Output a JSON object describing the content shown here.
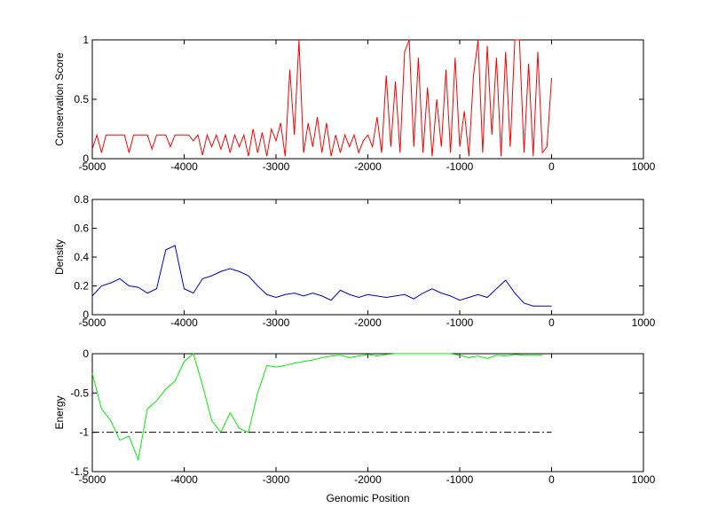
{
  "chart_data": [
    {
      "type": "line",
      "ylabel": "Conservation Score",
      "xlim": [
        -5000,
        1000
      ],
      "xticks": [
        -5000,
        -4000,
        -3000,
        -2000,
        -1000,
        0,
        1000
      ],
      "ylim": [
        0,
        1
      ],
      "yticks": [
        0,
        0.5,
        1
      ],
      "series": [
        {
          "color": "#ff0000",
          "x": [
            -5000,
            -4950,
            -4900,
            -4850,
            -4800,
            -4750,
            -4700,
            -4650,
            -4600,
            -4550,
            -4500,
            -4450,
            -4400,
            -4350,
            -4300,
            -4250,
            -4200,
            -4150,
            -4100,
            -4050,
            -4000,
            -3950,
            -3900,
            -3850,
            -3800,
            -3750,
            -3700,
            -3650,
            -3600,
            -3550,
            -3500,
            -3450,
            -3400,
            -3350,
            -3300,
            -3250,
            -3200,
            -3150,
            -3100,
            -3050,
            -3000,
            -2950,
            -2900,
            -2850,
            -2800,
            -2750,
            -2700,
            -2650,
            -2600,
            -2550,
            -2500,
            -2450,
            -2400,
            -2350,
            -2300,
            -2250,
            -2200,
            -2150,
            -2100,
            -2050,
            -2000,
            -1950,
            -1900,
            -1850,
            -1800,
            -1750,
            -1700,
            -1650,
            -1600,
            -1550,
            -1500,
            -1450,
            -1400,
            -1350,
            -1300,
            -1250,
            -1200,
            -1150,
            -1100,
            -1050,
            -1000,
            -950,
            -900,
            -850,
            -800,
            -750,
            -700,
            -650,
            -600,
            -550,
            -500,
            -450,
            -400,
            -350,
            -300,
            -250,
            -200,
            -150,
            -100,
            -50,
            0
          ],
          "values": [
            0.08,
            0.2,
            0.05,
            0.2,
            0.2,
            0.2,
            0.2,
            0.2,
            0.05,
            0.2,
            0.2,
            0.2,
            0.2,
            0.08,
            0.2,
            0.2,
            0.2,
            0.1,
            0.2,
            0.2,
            0.2,
            0.2,
            0.15,
            0.2,
            0.03,
            0.2,
            0.1,
            0.2,
            0.08,
            0.2,
            0.05,
            0.2,
            0.1,
            0.2,
            0.02,
            0.25,
            0.05,
            0.22,
            0.02,
            0.25,
            0.15,
            0.3,
            0.02,
            0.75,
            0.2,
            1,
            0.05,
            0.3,
            0.1,
            0.35,
            0.05,
            0.3,
            0.02,
            0.2,
            0.05,
            0.2,
            0.1,
            0.2,
            0.05,
            0.15,
            0.2,
            0.1,
            0.35,
            0.05,
            0.7,
            0.1,
            0.65,
            0.05,
            0.9,
            1,
            0.1,
            0.85,
            0.05,
            0.6,
            0.02,
            0.5,
            0.1,
            0.75,
            0.05,
            0.85,
            0.1,
            0.4,
            0.02,
            0.7,
            1,
            0.05,
            0.95,
            0.2,
            0.85,
            0.02,
            0.9,
            0.1,
            1,
            1,
            0.05,
            0.8,
            0.02,
            0.9,
            0.05,
            0.1,
            0.68
          ]
        }
      ]
    },
    {
      "type": "line",
      "ylabel": "Density",
      "xlim": [
        -5000,
        1000
      ],
      "xticks": [
        -5000,
        -4000,
        -3000,
        -2000,
        -1000,
        0,
        1000
      ],
      "ylim": [
        0,
        0.8
      ],
      "yticks": [
        0,
        0.2,
        0.4,
        0.6,
        0.8
      ],
      "series": [
        {
          "color": "#0000cc",
          "x": [
            -5000,
            -4900,
            -4800,
            -4700,
            -4600,
            -4500,
            -4400,
            -4300,
            -4200,
            -4100,
            -4000,
            -3900,
            -3800,
            -3700,
            -3600,
            -3500,
            -3400,
            -3300,
            -3200,
            -3100,
            -3000,
            -2900,
            -2800,
            -2700,
            -2600,
            -2500,
            -2400,
            -2300,
            -2200,
            -2100,
            -2000,
            -1900,
            -1800,
            -1700,
            -1600,
            -1500,
            -1400,
            -1300,
            -1200,
            -1100,
            -1000,
            -900,
            -800,
            -700,
            -600,
            -500,
            -400,
            -300,
            -200,
            -100,
            0
          ],
          "values": [
            0.13,
            0.2,
            0.22,
            0.25,
            0.2,
            0.19,
            0.15,
            0.18,
            0.45,
            0.48,
            0.18,
            0.15,
            0.25,
            0.27,
            0.3,
            0.32,
            0.3,
            0.27,
            0.2,
            0.14,
            0.12,
            0.14,
            0.15,
            0.13,
            0.15,
            0.13,
            0.1,
            0.17,
            0.14,
            0.12,
            0.14,
            0.13,
            0.12,
            0.13,
            0.14,
            0.11,
            0.15,
            0.18,
            0.15,
            0.13,
            0.1,
            0.12,
            0.14,
            0.12,
            0.18,
            0.24,
            0.15,
            0.08,
            0.06,
            0.06,
            0.06
          ]
        }
      ]
    },
    {
      "type": "line",
      "ylabel": "Energy",
      "xlabel": "Genomic Position",
      "xlim": [
        -5000,
        1000
      ],
      "xticks": [
        -5000,
        -4000,
        -3000,
        -2000,
        -1000,
        0,
        1000
      ],
      "ylim": [
        -1.5,
        0
      ],
      "yticks": [
        -1.5,
        -1,
        -0.5,
        0
      ],
      "series": [
        {
          "color": "#00ee00",
          "x": [
            -5000,
            -4900,
            -4800,
            -4700,
            -4600,
            -4500,
            -4400,
            -4300,
            -4200,
            -4100,
            -4000,
            -3900,
            -3800,
            -3700,
            -3600,
            -3500,
            -3400,
            -3300,
            -3200,
            -3100,
            -3000,
            -2900,
            -2800,
            -2700,
            -2600,
            -2500,
            -2400,
            -2300,
            -2200,
            -2100,
            -2000,
            -1900,
            -1800,
            -1700,
            -1600,
            -1500,
            -1400,
            -1300,
            -1200,
            -1100,
            -1000,
            -900,
            -800,
            -700,
            -600,
            -500,
            -400,
            -300,
            -200,
            -100
          ],
          "values": [
            -0.25,
            -0.7,
            -0.85,
            -1.1,
            -1.05,
            -1.35,
            -0.7,
            -0.6,
            -0.45,
            -0.35,
            -0.1,
            0,
            -0.4,
            -0.85,
            -1,
            -0.75,
            -0.95,
            -1,
            -0.5,
            -0.15,
            -0.17,
            -0.15,
            -0.12,
            -0.1,
            -0.08,
            -0.05,
            -0.03,
            -0.02,
            -0.05,
            -0.03,
            -0.01,
            -0.03,
            -0.01,
            0,
            0,
            0,
            0,
            0,
            0,
            0,
            -0.02,
            -0.05,
            -0.03,
            -0.06,
            -0.02,
            -0.03,
            -0.01,
            -0.02,
            -0.02,
            -0.02
          ]
        },
        {
          "color": "#000000",
          "style": "dashdot",
          "x": [
            -5000,
            0
          ],
          "values": [
            -1,
            -1
          ]
        }
      ]
    }
  ]
}
